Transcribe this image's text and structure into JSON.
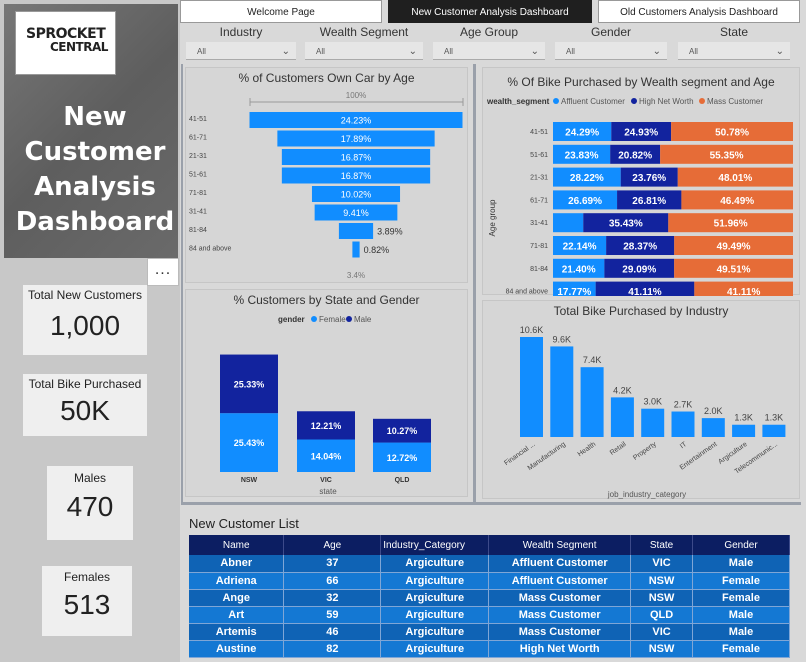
{
  "tabs": [
    {
      "label": "Welcome Page",
      "active": false
    },
    {
      "label": "New Customer Analysis Dashboard",
      "active": true
    },
    {
      "label": "Old Customers Analysis Dashboard",
      "active": false
    }
  ],
  "logo": {
    "line1": "SPROCKET",
    "line2": "CENTRAL"
  },
  "dashboard_title": "New Customer Analysis Dashboard",
  "more_icon": "...",
  "kpis": [
    {
      "label": "Total New Customers",
      "value": "1,000"
    },
    {
      "label": "Total Bike Purchased",
      "value": "50K"
    },
    {
      "label": "Males",
      "value": "470"
    },
    {
      "label": "Females",
      "value": "513"
    }
  ],
  "filters": [
    {
      "label": "Industry",
      "value": "All"
    },
    {
      "label": "Wealth Segment",
      "value": "All"
    },
    {
      "label": "Age Group",
      "value": "All"
    },
    {
      "label": "Gender",
      "value": "All"
    },
    {
      "label": "State",
      "value": "All"
    }
  ],
  "colors": {
    "primary": "#118dff",
    "navy": "#12239e",
    "orange": "#e66c37",
    "header": "#0c1e62"
  },
  "car_chart": {
    "title": "% of Customers Own Car by Age",
    "top_label": "100%",
    "bottom_label": "3.4%",
    "chart_data": {
      "type": "bar",
      "categories": [
        "41-51",
        "61-71",
        "21-31",
        "51-61",
        "71-81",
        "31-41",
        "81-84",
        "84 and above"
      ],
      "values": [
        24.23,
        17.89,
        16.87,
        16.87,
        10.02,
        9.41,
        3.89,
        0.82
      ],
      "labels": [
        "24.23%",
        "17.89%",
        "16.87%",
        "16.87%",
        "10.02%",
        "9.41%",
        "3.89%",
        "0.82%"
      ]
    }
  },
  "wealth_chart": {
    "title": "% Of Bike Purchased by Wealth segment and Age",
    "legend_title": "wealth_segment",
    "ylabel": "Age group",
    "chart_data": {
      "type": "bar",
      "categories": [
        "41-51",
        "51-61",
        "21-31",
        "61-71",
        "31-41",
        "71-81",
        "81-84",
        "84 and above"
      ],
      "series": [
        {
          "name": "Affluent Customer",
          "values": [
            24.29,
            23.83,
            28.22,
            26.69,
            12.61,
            22.14,
            21.4,
            17.77
          ],
          "labels": [
            "24.29%",
            "23.83%",
            "28.22%",
            "26.69%",
            "",
            "22.14%",
            "21.40%",
            "17.77%"
          ]
        },
        {
          "name": "High Net Worth",
          "values": [
            24.93,
            20.82,
            23.76,
            26.81,
            35.43,
            28.37,
            29.09,
            41.11
          ],
          "labels": [
            "24.93%",
            "20.82%",
            "23.76%",
            "26.81%",
            "35.43%",
            "28.37%",
            "29.09%",
            "41.11%"
          ]
        },
        {
          "name": "Mass Customer",
          "values": [
            50.78,
            55.35,
            48.01,
            46.49,
            51.96,
            49.49,
            49.51,
            41.11
          ],
          "labels": [
            "50.78%",
            "55.35%",
            "48.01%",
            "46.49%",
            "51.96%",
            "49.49%",
            "49.51%",
            "41.11%"
          ]
        }
      ]
    }
  },
  "state_chart": {
    "title": "% Customers by State and Gender",
    "legend_title": "gender",
    "xlabel": "state",
    "chart_data": {
      "type": "bar",
      "categories": [
        "NSW",
        "VIC",
        "QLD"
      ],
      "series": [
        {
          "name": "Female",
          "values": [
            25.43,
            14.04,
            12.72
          ],
          "labels": [
            "25.43%",
            "14.04%",
            "12.72%"
          ]
        },
        {
          "name": "Male",
          "values": [
            25.33,
            12.21,
            10.27
          ],
          "labels": [
            "25.33%",
            "12.21%",
            "10.27%"
          ]
        }
      ]
    }
  },
  "industry_chart": {
    "title": "Total Bike Purchased by Industry",
    "xlabel": "job_industry_category",
    "chart_data": {
      "type": "bar",
      "categories": [
        "Financial ...",
        "Manufacturing",
        "Health",
        "Retail",
        "Property",
        "IT",
        "Entertainment",
        "Argiculture",
        "Telecommunic..."
      ],
      "values": [
        10600,
        9600,
        7400,
        4200,
        3000,
        2700,
        2000,
        1300,
        1300
      ],
      "labels": [
        "10.6K",
        "9.6K",
        "7.4K",
        "4.2K",
        "3.0K",
        "2.7K",
        "2.0K",
        "1.3K",
        "1.3K"
      ]
    }
  },
  "table": {
    "title": "New Customer List",
    "columns": [
      "Name",
      "Age",
      "Industry_Category",
      "Wealth Segment",
      "State",
      "Gender"
    ],
    "rows": [
      [
        "Abner",
        "37",
        "Argiculture",
        "Affluent Customer",
        "VIC",
        "Male"
      ],
      [
        "Adriena",
        "66",
        "Argiculture",
        "Affluent Customer",
        "NSW",
        "Female"
      ],
      [
        "Ange",
        "32",
        "Argiculture",
        "Mass Customer",
        "NSW",
        "Female"
      ],
      [
        "Art",
        "59",
        "Argiculture",
        "Mass Customer",
        "QLD",
        "Male"
      ],
      [
        "Artemis",
        "46",
        "Argiculture",
        "Mass Customer",
        "VIC",
        "Male"
      ],
      [
        "Austine",
        "82",
        "Argiculture",
        "High Net Worth",
        "NSW",
        "Female"
      ]
    ]
  }
}
